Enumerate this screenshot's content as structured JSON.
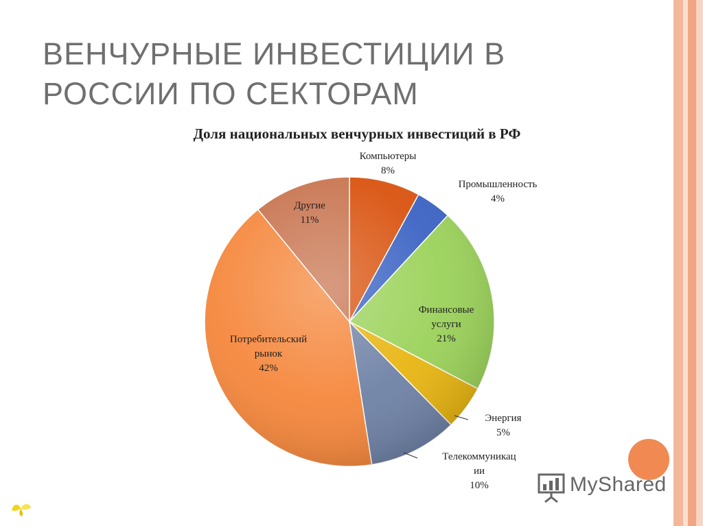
{
  "slide": {
    "title_lines": [
      "ВЕНЧУРНЫЕ ИНВЕСТИЦИИ В",
      "РОССИИ ПО СЕКТОРАМ"
    ]
  },
  "chart_data": {
    "type": "pie",
    "title": "Доля национальных венчурных инвестиций в РФ",
    "slices": [
      {
        "label_lines": [
          "Компьютеры"
        ],
        "value": 8,
        "value_label": "8%",
        "color": "#d9520e"
      },
      {
        "label_lines": [
          "Промышленность"
        ],
        "value": 4,
        "value_label": "4%",
        "color": "#3b63c4"
      },
      {
        "label_lines": [
          "Финансовые",
          "услуги"
        ],
        "value": 21,
        "value_label": "21%",
        "color": "#9bd25a"
      },
      {
        "label_lines": [
          "Энергия"
        ],
        "value": 5,
        "value_label": "5%",
        "color": "#e8b512"
      },
      {
        "label_lines": [
          "Телекоммуникац",
          "ии"
        ],
        "value": 10,
        "value_label": "10%",
        "color": "#6f82a6"
      },
      {
        "label_lines": [
          "Потребительский",
          "рынок"
        ],
        "value": 42,
        "value_label": "42%",
        "color": "#f5873c"
      },
      {
        "label_lines": [
          "Другие"
        ],
        "value": 11,
        "value_label": "11%",
        "color": "#c8744f"
      }
    ],
    "legend": "none",
    "start": "12 o'clock, clockwise"
  },
  "branding": {
    "text": "MyShared",
    "accent_color": "#f08a52"
  }
}
